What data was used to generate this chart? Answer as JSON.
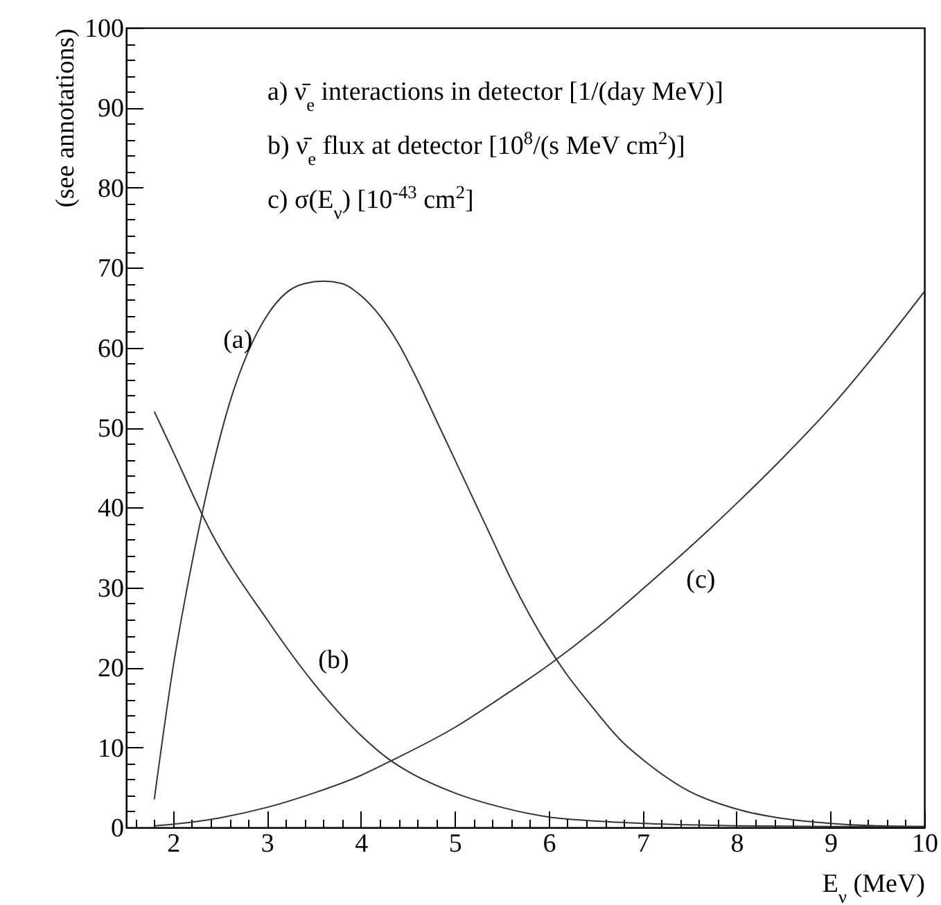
{
  "chart_data": {
    "type": "line",
    "ylabel": "(see annotations)",
    "xlabel": "E$_{ν}$ (MeV)",
    "annotations": [
      "a) ν̄$_{e}$ interactions in detector [1/(day MeV)]",
      "b) ν̄$_{e}$ flux at detector [10$^{8}$/(s MeV cm$^{2}$)]",
      "c) σ(E$_{ν}$) [10$^{-43}$ cm$^{2}$]"
    ],
    "xlim": [
      1.5,
      10
    ],
    "ylim": [
      0,
      100
    ],
    "xticks": [
      {
        "value": 1.6,
        "label": null
      },
      {
        "value": 1.8,
        "label": null
      },
      2,
      {
        "value": 2.2,
        "label": null
      },
      {
        "value": 2.4,
        "label": null
      },
      {
        "value": 2.6,
        "label": null
      },
      {
        "value": 2.8,
        "label": null
      },
      3,
      {
        "value": 3.2,
        "label": null
      },
      {
        "value": 3.4,
        "label": null
      },
      {
        "value": 3.6,
        "label": null
      },
      {
        "value": 3.8,
        "label": null
      },
      4,
      {
        "value": 4.2,
        "label": null
      },
      {
        "value": 4.4,
        "label": null
      },
      {
        "value": 4.6,
        "label": null
      },
      {
        "value": 4.8,
        "label": null
      },
      5,
      {
        "value": 5.2,
        "label": null
      },
      {
        "value": 5.4,
        "label": null
      },
      {
        "value": 5.6,
        "label": null
      },
      {
        "value": 5.8,
        "label": null
      },
      6,
      {
        "value": 6.2,
        "label": null
      },
      {
        "value": 6.4,
        "label": null
      },
      {
        "value": 6.6,
        "label": null
      },
      {
        "value": 6.8,
        "label": null
      },
      7,
      {
        "value": 7.2,
        "label": null
      },
      {
        "value": 7.4,
        "label": null
      },
      {
        "value": 7.6,
        "label": null
      },
      {
        "value": 7.8,
        "label": null
      },
      8,
      {
        "value": 8.2,
        "label": null
      },
      {
        "value": 8.4,
        "label": null
      },
      {
        "value": 8.6,
        "label": null
      },
      {
        "value": 8.8,
        "label": null
      },
      9,
      {
        "value": 9.2,
        "label": null
      },
      {
        "value": 9.4,
        "label": null
      },
      {
        "value": 9.6,
        "label": null
      },
      {
        "value": 9.8,
        "label": null
      },
      10
    ],
    "yticks": [
      0,
      {
        "value": 2,
        "label": null
      },
      {
        "value": 4,
        "label": null
      },
      {
        "value": 6,
        "label": null
      },
      {
        "value": 8,
        "label": null
      },
      10,
      {
        "value": 12,
        "label": null
      },
      {
        "value": 14,
        "label": null
      },
      {
        "value": 16,
        "label": null
      },
      {
        "value": 18,
        "label": null
      },
      20,
      {
        "value": 22,
        "label": null
      },
      {
        "value": 24,
        "label": null
      },
      {
        "value": 26,
        "label": null
      },
      {
        "value": 28,
        "label": null
      },
      30,
      {
        "value": 32,
        "label": null
      },
      {
        "value": 34,
        "label": null
      },
      {
        "value": 36,
        "label": null
      },
      {
        "value": 38,
        "label": null
      },
      40,
      {
        "value": 42,
        "label": null
      },
      {
        "value": 44,
        "label": null
      },
      {
        "value": 46,
        "label": null
      },
      {
        "value": 48,
        "label": null
      },
      50,
      {
        "value": 52,
        "label": null
      },
      {
        "value": 54,
        "label": null
      },
      {
        "value": 56,
        "label": null
      },
      {
        "value": 58,
        "label": null
      },
      60,
      {
        "value": 62,
        "label": null
      },
      {
        "value": 64,
        "label": null
      },
      {
        "value": 66,
        "label": null
      },
      {
        "value": 68,
        "label": null
      },
      70,
      {
        "value": 72,
        "label": null
      },
      {
        "value": 74,
        "label": null
      },
      {
        "value": 76,
        "label": null
      },
      {
        "value": 78,
        "label": null
      },
      80,
      {
        "value": 82,
        "label": null
      },
      {
        "value": 84,
        "label": null
      },
      {
        "value": 86,
        "label": null
      },
      {
        "value": 88,
        "label": null
      },
      90,
      {
        "value": 92,
        "label": null
      },
      {
        "value": 94,
        "label": null
      },
      {
        "value": 96,
        "label": null
      },
      {
        "value": 98,
        "label": null
      },
      100
    ],
    "grid": false,
    "marker": "none",
    "line_style": "solid",
    "series": [
      {
        "name": "(a)",
        "color": "#333333",
        "x": [
          1.8,
          2.0,
          2.2,
          2.4,
          2.6,
          2.8,
          3.0,
          3.2,
          3.4,
          3.6,
          3.8,
          4.0,
          4.2,
          4.4,
          4.6,
          4.8,
          5.0,
          5.2,
          5.4,
          5.6,
          5.8,
          6.0,
          6.2,
          6.4,
          6.8,
          7.0,
          7.5,
          8.0,
          8.5,
          9.0,
          9.5,
          10.0
        ],
        "values": [
          3.5,
          20,
          33,
          44,
          53,
          59.5,
          64,
          66.8,
          68,
          68.3,
          68,
          66.5,
          64,
          60.5,
          56,
          51,
          46,
          41,
          36,
          31,
          26.5,
          22.5,
          19,
          16,
          10.5,
          8.5,
          4.5,
          2.3,
          1.1,
          0.5,
          0.2,
          0.1
        ]
      },
      {
        "name": "(b)",
        "color": "#333333",
        "x": [
          1.8,
          2.0,
          2.4,
          3.0,
          3.5,
          4.0,
          4.3,
          4.5,
          5.0,
          5.5,
          6.0,
          6.5,
          7.0,
          8.0,
          9.0,
          10.0
        ],
        "values": [
          52,
          47,
          37,
          26,
          18,
          11.5,
          8.5,
          7,
          4.3,
          2.5,
          1.3,
          0.8,
          0.5,
          0.2,
          0.1,
          0.1
        ]
      },
      {
        "name": "(c)",
        "color": "#333333",
        "x": [
          1.8,
          2.0,
          2.5,
          3.0,
          3.5,
          4.0,
          4.3,
          5.0,
          5.5,
          6.0,
          6.5,
          7.0,
          7.5,
          8.0,
          8.5,
          9.0,
          9.5,
          10.0
        ],
        "values": [
          0.2,
          0.4,
          1.2,
          2.5,
          4.3,
          6.5,
          8.2,
          12.5,
          16.3,
          20.3,
          24.8,
          29.8,
          35,
          40.5,
          46.3,
          52.5,
          59.5,
          67
        ]
      }
    ]
  }
}
